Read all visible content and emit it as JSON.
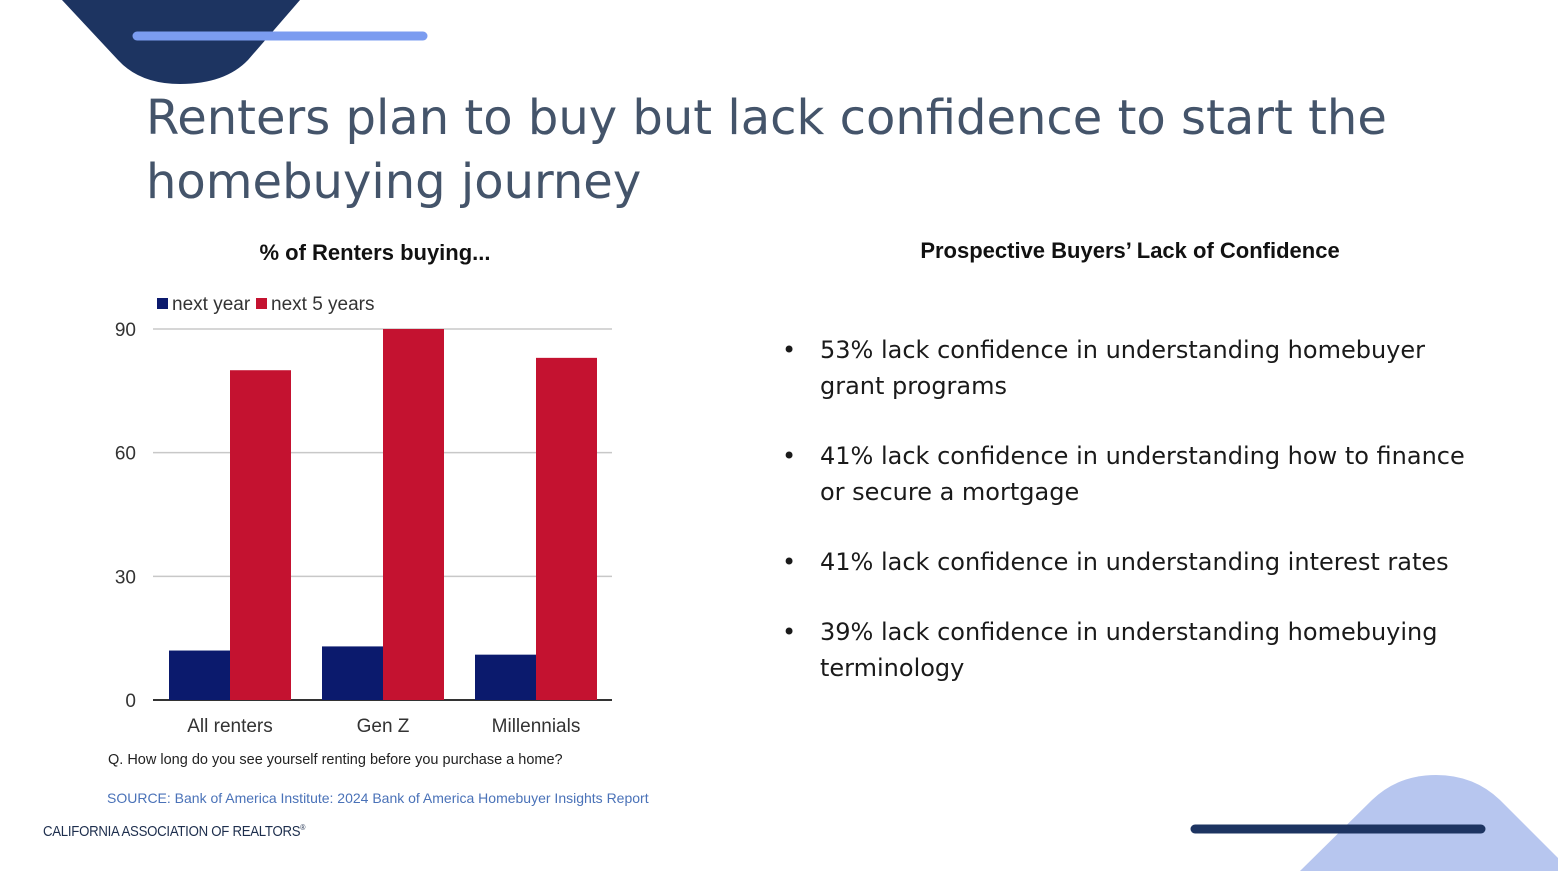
{
  "slide": {
    "title": "Renters plan to buy but lack confidence to start the homebuying journey",
    "question": "Q. How long do you see yourself renting before you purchase a home?",
    "source": "SOURCE: Bank of America Institute: 2024 Bank of America Homebuyer Insights Report",
    "organization": "CALIFORNIA ASSOCIATION OF REALTORS",
    "organization_mark": "®"
  },
  "colors": {
    "next_year": "#0b1a6d",
    "next_5_years": "#c41230",
    "title": "#44546a",
    "deco_dark": "#1d3461",
    "deco_light": "#b7c6ef",
    "accent_line": "#7b9cf0"
  },
  "confidence_panel": {
    "title": "Prospective Buyers’ Lack of Confidence",
    "bullet_glyph": "•",
    "items": [
      {
        "line1": "53% lack confidence in understanding homebuyer",
        "line2": "grant programs"
      },
      {
        "line1": "41% lack confidence in understanding how to finance",
        "line2": "or secure a mortgage"
      },
      {
        "line1": "41% lack confidence in understanding interest rates",
        "line2": ""
      },
      {
        "line1": "39% lack confidence in understanding homebuying",
        "line2": "terminology"
      }
    ]
  },
  "chart_data": {
    "type": "bar",
    "title": "% of Renters buying...",
    "categories": [
      "All renters",
      "Gen Z",
      "Millennials"
    ],
    "series": [
      {
        "name": "next year",
        "values": [
          12,
          13,
          11
        ]
      },
      {
        "name": "next 5 years",
        "values": [
          80,
          90,
          83
        ]
      }
    ],
    "yticks": [
      0,
      30,
      60,
      90
    ],
    "ylim": [
      0,
      90
    ],
    "grid": true,
    "legend": "top-left"
  }
}
